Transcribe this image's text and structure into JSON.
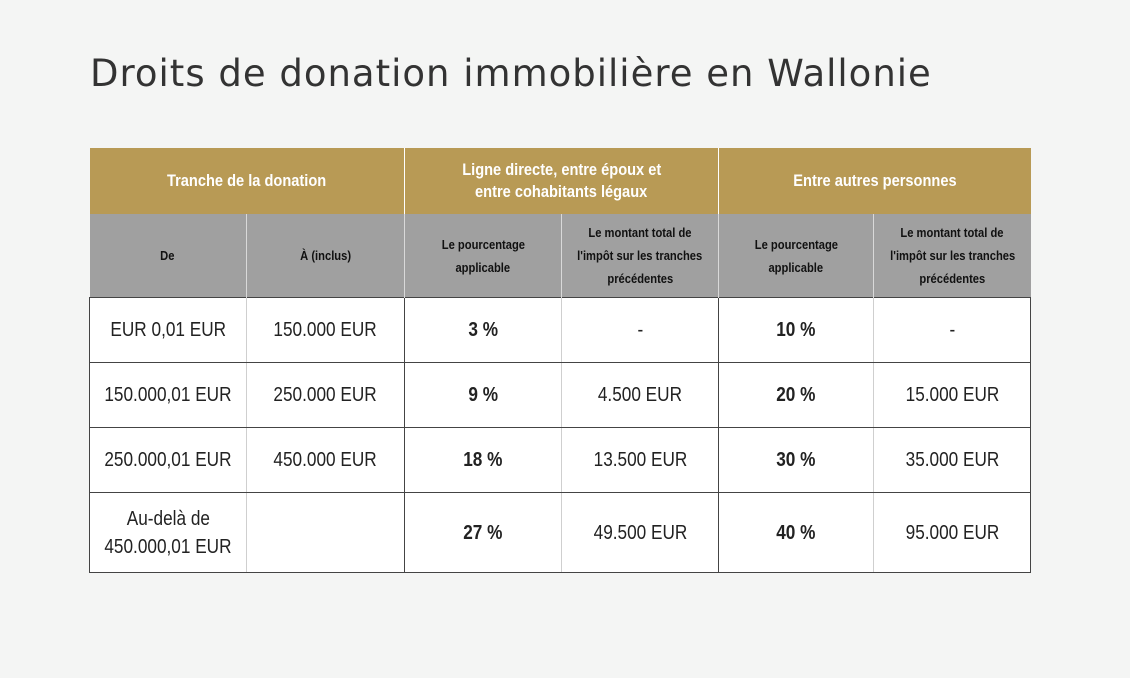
{
  "title": "Droits de donation immobilière en Wallonie",
  "table": {
    "group_headers": {
      "tranche": "Tranche de la donation",
      "ligne_directe": [
        "Ligne directe, entre époux et",
        "entre cohabitants légaux"
      ],
      "autres": "Entre autres personnes"
    },
    "sub_headers": {
      "de": "De",
      "a": "À (inclus)",
      "pct_1": [
        "Le pourcentage",
        "applicable"
      ],
      "montant_1": [
        "Le montant total de",
        "l'impôt sur les tranches",
        "précédentes"
      ],
      "pct_2": [
        "Le pourcentage",
        "applicable"
      ],
      "montant_2": [
        "Le montant total de",
        "l'impôt sur les tranches",
        "précédentes"
      ]
    },
    "rows": [
      {
        "de": [
          "EUR 0,01 EUR"
        ],
        "a": "150.000 EUR",
        "pct_1": "3 %",
        "montant_1": "-",
        "pct_2": "10 %",
        "montant_2": "-"
      },
      {
        "de": [
          "150.000,01 EUR"
        ],
        "a": "250.000 EUR",
        "pct_1": "9 %",
        "montant_1": "4.500 EUR",
        "pct_2": "20 %",
        "montant_2": "15.000 EUR"
      },
      {
        "de": [
          "250.000,01 EUR"
        ],
        "a": "450.000 EUR",
        "pct_1": "18 %",
        "montant_1": "13.500 EUR",
        "pct_2": "30 %",
        "montant_2": "35.000 EUR"
      },
      {
        "de": [
          "Au-delà de",
          "450.000,01 EUR"
        ],
        "a": "",
        "pct_1": "27 %",
        "montant_1": "49.500 EUR",
        "pct_2": "40 %",
        "montant_2": "95.000 EUR"
      }
    ]
  },
  "colors": {
    "gold_header": "#b89a55",
    "gray_header": "#a0a0a0",
    "background": "#f4f5f4"
  }
}
